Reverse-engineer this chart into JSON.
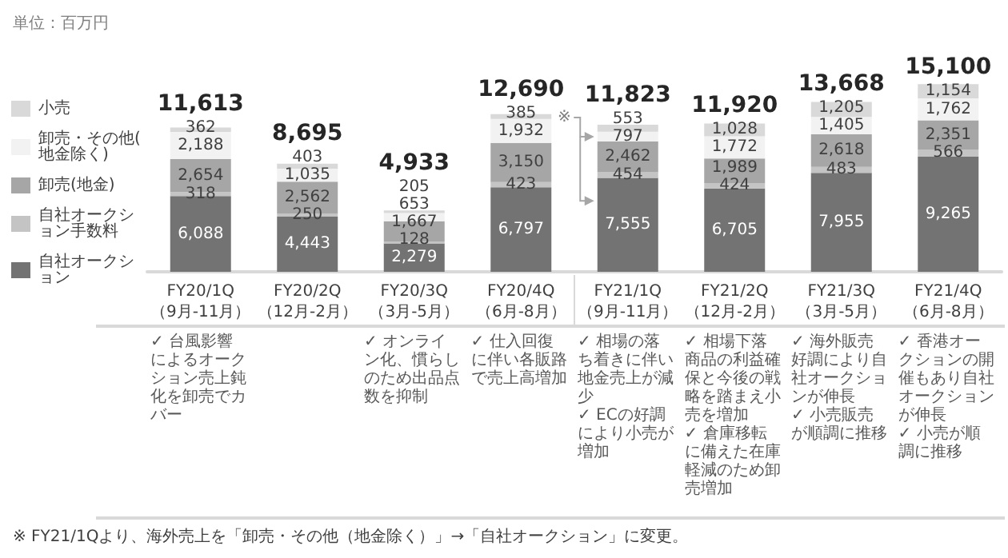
{
  "chart_data": {
    "type": "bar",
    "stacked": true,
    "legend": "left",
    "categories": [
      "FY20/1Q\n（9月-11月）",
      "FY20/2Q\n（12月-2月）",
      "FY20/3Q\n（3月-5月）",
      "FY20/4Q\n（6月-8月）",
      "FY21/1Q\n（9月-11月）",
      "FY21/2Q\n（12月-2月）",
      "FY21/3Q\n（3月-5月）",
      "FY21/4Q\n（6月-8月）"
    ],
    "series": [
      {
        "name": "自社オークション",
        "color": "#737373",
        "values": [
          6088,
          4443,
          2279,
          6797,
          7555,
          6705,
          7955,
          9265
        ],
        "value_labels": [
          "6,088",
          "4,443",
          "2,279",
          "6,797",
          "7,555",
          "6,705",
          "7,955",
          "9,265"
        ]
      },
      {
        "name": "自社オークション手数料",
        "color": "#c4c4c4",
        "values": [
          318,
          250,
          128,
          423,
          454,
          424,
          483,
          566
        ],
        "value_labels": [
          "318",
          "250",
          "128",
          "423",
          "454",
          "424",
          "483",
          "566"
        ]
      },
      {
        "name": "卸売(地金)",
        "color": "#a6a6a6",
        "values": [
          2654,
          2562,
          1667,
          3150,
          2462,
          1989,
          2618,
          2351
        ],
        "value_labels": [
          "2,654",
          "2,562",
          "1,667",
          "3,150",
          "2,462",
          "1,989",
          "2,618",
          "2,351"
        ]
      },
      {
        "name": "卸売・その他(地金除く)",
        "color": "#f2f2f2",
        "values": [
          2188,
          1035,
          653,
          1932,
          797,
          1772,
          1405,
          1762
        ],
        "value_labels": [
          "2,188",
          "1,035",
          "653",
          "1,932",
          "797",
          "1,772",
          "1,405",
          "1,762"
        ]
      },
      {
        "name": "小売",
        "color": "#d9d9d9",
        "values": [
          362,
          403,
          205,
          385,
          553,
          1028,
          1205,
          1154
        ],
        "value_labels": [
          "362",
          "403",
          "205",
          "385",
          "553",
          "1,028",
          "1,205",
          "1,154"
        ]
      }
    ],
    "totals": [
      "11,613",
      "8,695",
      "4,933",
      "12,690",
      "11,823",
      "11,920",
      "13,668",
      "15,100"
    ],
    "annotations": [
      "単位：百万円",
      "※ FY21/1Qより、海外売上を「卸売・その他（地金除く）」→「自社オークション」に変更。",
      "※",
      "✓ 台風影響によるオークション売上鈍化を卸売でカバー",
      null,
      "✓ オンライン化、慣らしのため出品点数を抑制",
      "✓ 仕入回復に伴い各販路で売上高増加",
      "✓ 相場の落ち着きに伴い地金売上が減少\n✓ ECの好調により小売が増加",
      "✓ 相場下落商品の利益確保と今後の戦略を踏まえ小売を増加\n✓ 倉庫移転に備えた在庫軽減のため卸売増加",
      "✓ 海外販売好調により自社オークションが伸長\n✓ 小売販売が順調に推移",
      "✓ 香港オークションの開催もあり自社オークションが伸長\n✓ 小売が順調に推移"
    ]
  }
}
